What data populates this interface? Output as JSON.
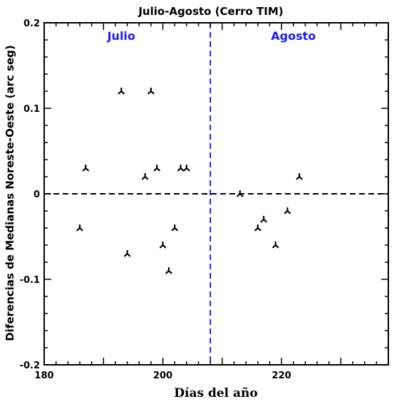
{
  "chart_data": {
    "type": "scatter",
    "title": "Julio-Agosto (Cerro TIM)",
    "xlabel": "Días del año",
    "ylabel": "Diferencias de Medianas Noreste-Oeste (arc seg)",
    "xlim": [
      180,
      238
    ],
    "ylim": [
      -0.2,
      0.2
    ],
    "x_ticks": [
      180,
      200,
      220
    ],
    "y_ticks": [
      -0.2,
      -0.1,
      0,
      0.1,
      0.2
    ],
    "x_tick_labels": [
      "180",
      "200",
      "220"
    ],
    "y_tick_labels": [
      "-0.2",
      "-0.1",
      "0",
      "0.1",
      "0.2"
    ],
    "grid": false,
    "marker": "tripod",
    "reference_lines": [
      {
        "orientation": "horizontal",
        "value": 0,
        "style": "dashed",
        "color": "#000000"
      },
      {
        "orientation": "vertical",
        "value": 208,
        "style": "dashed",
        "color": "#1a1aff"
      }
    ],
    "annotations": [
      {
        "text": "Julio",
        "x": 193,
        "y": 0.185,
        "color": "#1a1aff"
      },
      {
        "text": "Agosto",
        "x": 222,
        "y": 0.185,
        "color": "#1a1aff"
      }
    ],
    "series": [
      {
        "points": [
          [
            186,
            -0.04
          ],
          [
            187,
            0.03
          ],
          [
            193,
            0.12
          ],
          [
            194,
            -0.07
          ],
          [
            197,
            0.02
          ],
          [
            198,
            0.12
          ],
          [
            199,
            0.03
          ],
          [
            200,
            -0.06
          ],
          [
            201,
            -0.09
          ],
          [
            202,
            -0.04
          ],
          [
            203,
            0.03
          ],
          [
            204,
            0.03
          ],
          [
            213,
            0.0
          ],
          [
            216,
            -0.04
          ],
          [
            217,
            -0.03
          ],
          [
            219,
            -0.06
          ],
          [
            221,
            -0.02
          ],
          [
            223,
            0.02
          ]
        ]
      }
    ]
  }
}
